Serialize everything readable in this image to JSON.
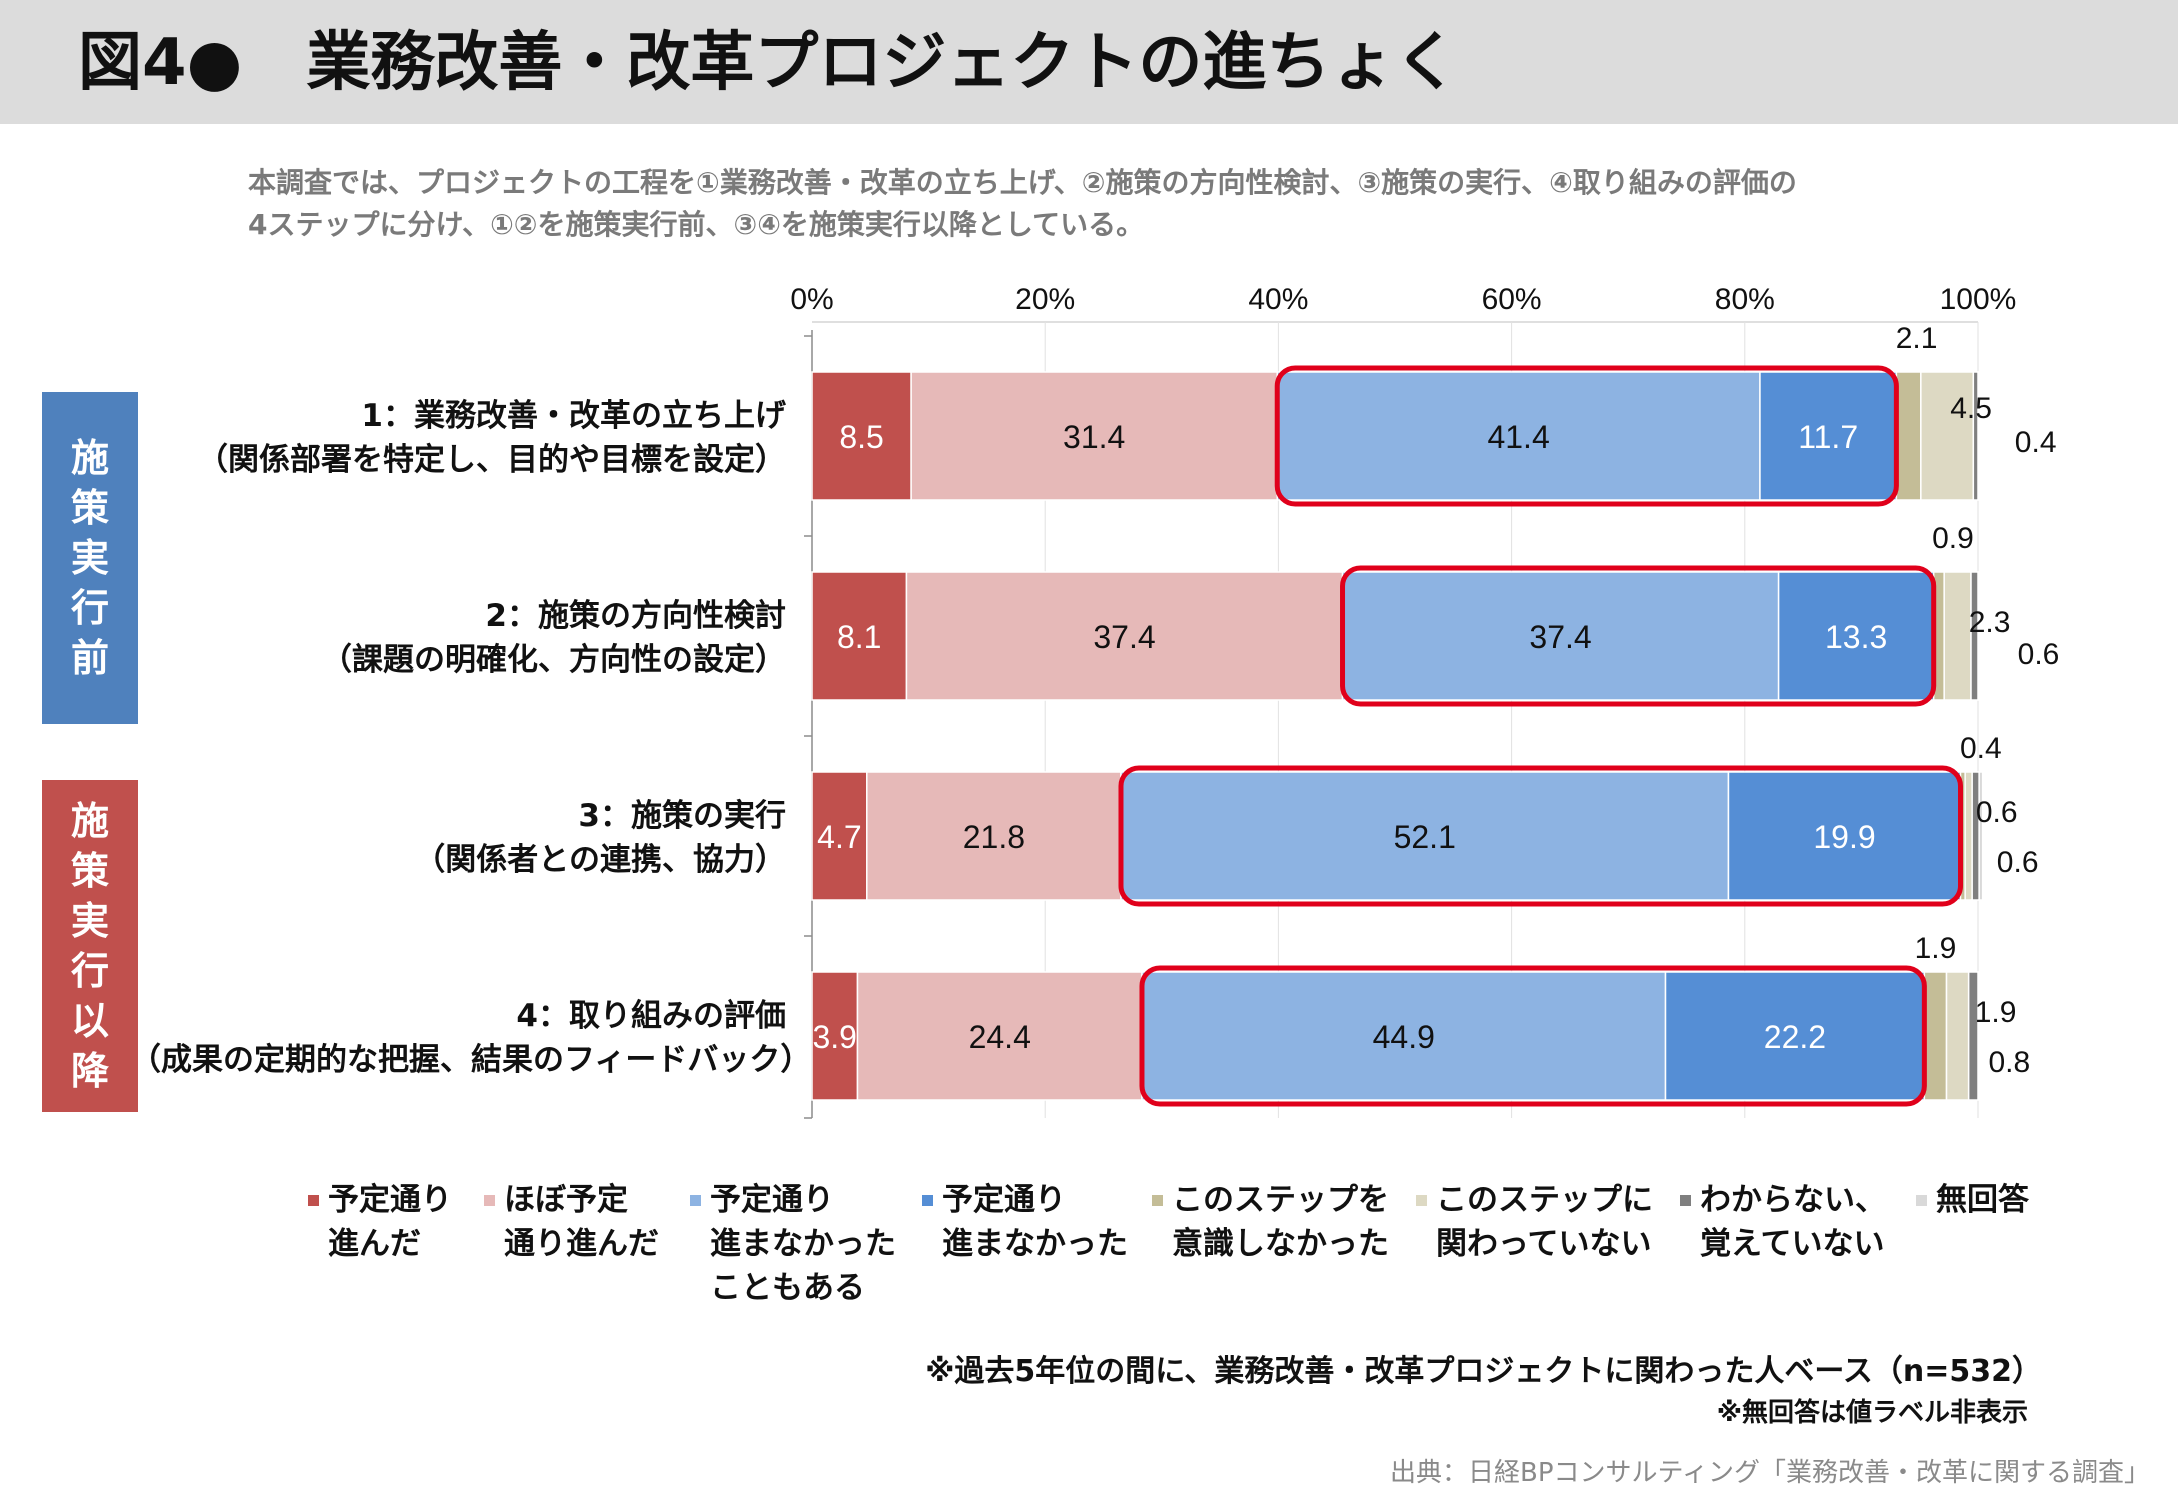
{
  "header": {
    "title": "図4●　業務改善・改革プロジェクトの進ちょく"
  },
  "note": {
    "line1": "本調査では、プロジェクトの工程を①業務改善・改革の立ち上げ、②施策の方向性検討、③施策の実行、④取り組みの評価の",
    "line2": "4ステップに分け、①②を施策実行前、③④を施策実行以降としている。"
  },
  "groups": {
    "pre": {
      "chars": [
        "施",
        "策",
        "実",
        "行",
        "前"
      ]
    },
    "post": {
      "chars": [
        "施",
        "策",
        "実",
        "行",
        "以",
        "降"
      ]
    }
  },
  "rows": [
    {
      "line1": "1：業務改善・改革の立ち上げ",
      "line2": "（関係部署を特定し、目的や目標を設定）"
    },
    {
      "line1": "2：施策の方向性検討",
      "line2": "（課題の明確化、方向性の設定）"
    },
    {
      "line1": "3：施策の実行",
      "line2": "（関係者との連携、協力）"
    },
    {
      "line1": "4：取り組みの評価",
      "line2": "（成果の定期的な把握、結果のフィードバック）"
    }
  ],
  "legend": [
    {
      "line1": "予定通り",
      "line2": "進んだ",
      "line3": ""
    },
    {
      "line1": "ほぼ予定",
      "line2": "通り進んだ",
      "line3": ""
    },
    {
      "line1": "予定通り",
      "line2": "進まなかった",
      "line3": "こともある"
    },
    {
      "line1": "予定通り",
      "line2": "進まなかった",
      "line3": ""
    },
    {
      "line1": "このステップを",
      "line2": "意識しなかった",
      "line3": ""
    },
    {
      "line1": "このステップに",
      "line2": "関わっていない",
      "line3": ""
    },
    {
      "line1": "わからない、",
      "line2": "覚えていない",
      "line3": ""
    },
    {
      "line1": "無回答",
      "line2": "",
      "line3": ""
    }
  ],
  "footnotes": {
    "base": "※過去5年位の間に、業務改善・改革プロジェクトに関わった人ベース（n=532）",
    "no_answer": "※無回答は値ラベル非表示",
    "source": "出典：日経BPコンサルティング「業務改善・改革に関する調査」"
  },
  "chart_data": {
    "type": "bar",
    "orientation": "horizontal-stacked-100",
    "categories": [
      "1：業務改善・改革の立ち上げ（関係部署を特定し、目的や目標を設定）",
      "2：施策の方向性検討（課題の明確化、方向性の設定）",
      "3：施策の実行（関係者との連携、協力）",
      "4：取り組みの評価（成果の定期的な把握、結果のフィードバック）"
    ],
    "xlim": [
      0,
      100
    ],
    "xticks": [
      "0%",
      "20%",
      "40%",
      "60%",
      "80%",
      "100%"
    ],
    "series": [
      {
        "name": "予定通り進んだ",
        "color": "#c0504d",
        "values": [
          8.5,
          8.1,
          4.7,
          3.9
        ]
      },
      {
        "name": "ほぼ予定通り進んだ",
        "color": "#e6b9b8",
        "values": [
          31.4,
          37.4,
          21.8,
          24.4
        ]
      },
      {
        "name": "予定通り進まなかったこともある",
        "color": "#8db3e2",
        "values": [
          41.4,
          37.4,
          52.1,
          44.9
        ]
      },
      {
        "name": "予定通り進まなかった",
        "color": "#558ed5",
        "values": [
          11.7,
          13.3,
          19.9,
          22.2
        ]
      },
      {
        "name": "このステップを意識しなかった",
        "color": "#c4bd97",
        "values": [
          2.1,
          0.9,
          0.4,
          1.9
        ]
      },
      {
        "name": "このステップに関わっていない",
        "color": "#ddd9c3",
        "values": [
          4.5,
          2.3,
          0.6,
          1.9
        ]
      },
      {
        "name": "わからない、覚えていない",
        "color": "#7f7f7f",
        "values": [
          0.4,
          0.6,
          0.6,
          0.8
        ]
      },
      {
        "name": "無回答",
        "color": "#d9d9d9",
        "values": [
          0.0,
          0.0,
          0.3,
          0.0
        ]
      }
    ],
    "highlight": "予定通り進まなかったこともある + 予定通り進まなかった",
    "colors": {
      "highlight_border": "#e0001b",
      "pre_group": "#4f81bd",
      "post_group": "#c0504d"
    }
  }
}
